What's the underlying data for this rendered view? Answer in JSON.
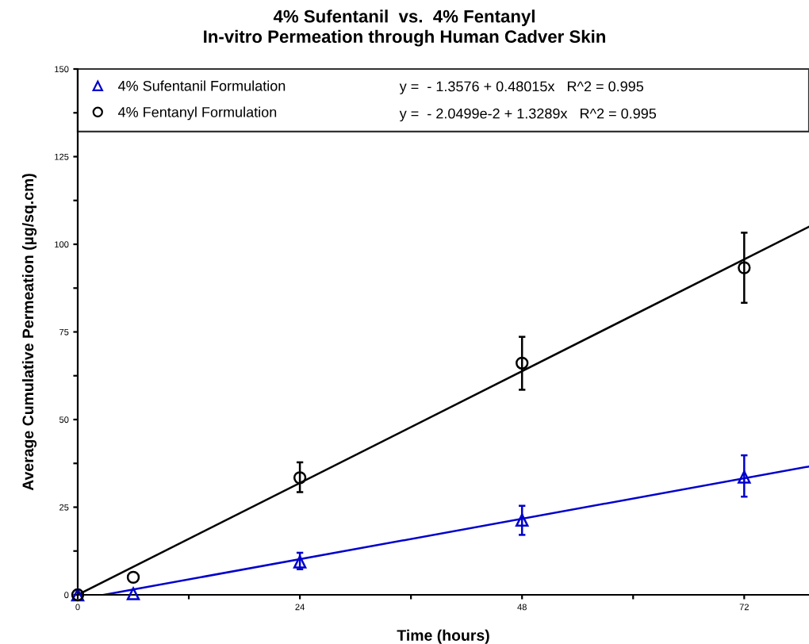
{
  "chart_data": {
    "type": "scatter",
    "title": "4% Sufentanil  vs.  4% Fentanyl\nIn-vitro Permeation through Human Cadver Skin",
    "xlabel": "Time (hours)",
    "ylabel": "Average Cumulative Permeation (µg/sq.cm)",
    "xlim": [
      0,
      79
    ],
    "ylim": [
      0,
      150
    ],
    "xticks": [
      0,
      {
        "value": 12,
        "label": null
      },
      24,
      {
        "value": 36,
        "label": null
      },
      48,
      {
        "value": 60,
        "label": null
      },
      72
    ],
    "yticks": [
      0,
      {
        "value": 12.5,
        "label": null
      },
      25,
      {
        "value": 37.5,
        "label": null
      },
      50,
      {
        "value": 62.5,
        "label": null
      },
      75,
      {
        "value": 87.5,
        "label": null
      },
      100,
      {
        "value": 112.5,
        "label": null
      },
      125,
      {
        "value": 137.5,
        "label": null
      },
      150
    ],
    "grid": false,
    "legend": "top",
    "annotations": [
      "y =  - 1.3576 + 0.48015x   R^2 = 0.995",
      "y =  - 2.0499e-2 + 1.3289x   R^2 = 0.995"
    ],
    "series": [
      {
        "name": "4% Sufentanil Formulation",
        "marker": "triangle",
        "color": "#0000cc",
        "x": [
          0,
          6,
          24,
          48,
          72
        ],
        "values": [
          0,
          0.3,
          9.4,
          21.3,
          33.6
        ],
        "errors": [
          null,
          null,
          [
            7.3,
            12
          ],
          [
            17.1,
            25.4
          ],
          [
            28,
            39.8
          ]
        ]
      },
      {
        "name": "4% Fentanyl Formulation",
        "marker": "circle",
        "color": "#000000",
        "x": [
          0,
          6,
          24,
          48,
          72
        ],
        "values": [
          0,
          5.0,
          33.4,
          66.1,
          93.3
        ],
        "errors": [
          null,
          null,
          [
            29.3,
            37.8
          ],
          [
            58.5,
            73.6
          ],
          [
            83.3,
            103.3
          ]
        ]
      },
      {
        "type": "line",
        "color": "#0000cc",
        "x": [
          2.83,
          79
        ],
        "values": [
          0,
          36.6
        ]
      },
      {
        "type": "line",
        "color": "#000000",
        "x": [
          0,
          79
        ],
        "values": [
          0,
          105.0
        ]
      }
    ]
  }
}
